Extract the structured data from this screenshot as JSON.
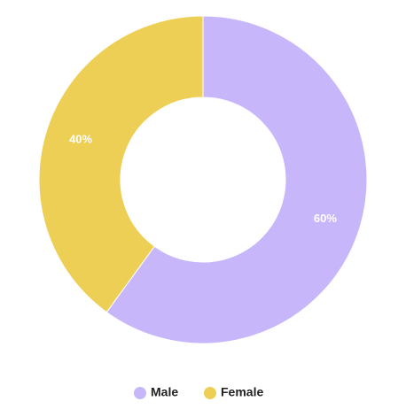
{
  "chart_data": {
    "type": "donut",
    "categories": [
      "Male",
      "Female"
    ],
    "values": [
      60,
      40
    ],
    "value_labels": [
      "60%",
      "40%"
    ],
    "colors": [
      "#c8b6fb",
      "#eecf55"
    ],
    "legend": "bottom"
  }
}
